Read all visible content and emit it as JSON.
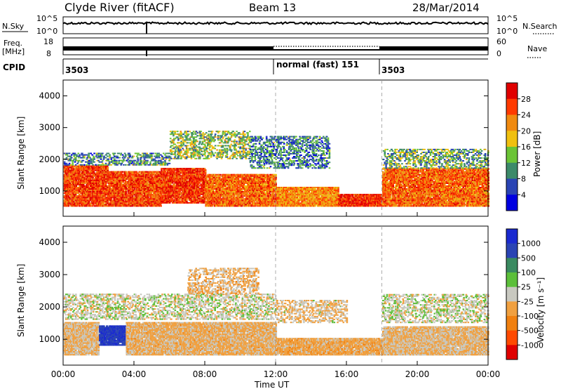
{
  "header": {
    "station": "Clyde River (fitACF)",
    "beam": "Beam 13",
    "date": "28/Mar/2014"
  },
  "noise_panel": {
    "left_label": "N.Sky",
    "right_label": "N.Search",
    "left_ticks": [
      "10^5",
      "10^0"
    ],
    "right_ticks": [
      "10^5",
      "10^0"
    ]
  },
  "freq_panel": {
    "left_label_line1": "Freq.",
    "left_label_line2": "[MHz]",
    "right_label": "Nave",
    "left_ticks": [
      "18",
      "8"
    ],
    "right_ticks": [
      "60",
      "0"
    ]
  },
  "cpid_panel": {
    "label": "CPID",
    "segments": [
      {
        "text": "3503",
        "start_hour": 0
      },
      {
        "text": "normal (fast)  151",
        "start_hour": 12
      },
      {
        "text": "3503",
        "start_hour": 18
      }
    ]
  },
  "colors": {
    "power_scale": [
      "#0000e0",
      "#2a44b4",
      "#3c8a6a",
      "#6bc436",
      "#f0c010",
      "#f08a10",
      "#ff3a00",
      "#e00000"
    ],
    "velocity_scale": [
      "#e00000",
      "#ff4a00",
      "#f08010",
      "#f0a040",
      "#c8c8c0",
      "#5cbf3a",
      "#3a8a60",
      "#2a44b4",
      "#1a2ad0"
    ]
  },
  "chart_data": [
    {
      "type": "heatmap",
      "title": "",
      "xlabel": "Time UT",
      "ylabel": "Slant Range [km]",
      "x_ticks": [
        "00:00",
        "04:00",
        "08:00",
        "12:00",
        "16:00",
        "20:00",
        "00:00"
      ],
      "xlim": [
        0,
        24
      ],
      "ylim": [
        200,
        4500
      ],
      "y_ticks": [
        "1000",
        "2000",
        "3000",
        "4000"
      ],
      "colorbar": {
        "label": "Power [dB]",
        "ticks": [
          "28",
          "24",
          "20",
          "16",
          "12",
          "8",
          "4"
        ],
        "range": [
          0,
          32
        ]
      },
      "echo_bands": [
        {
          "start_hour": 0.0,
          "end_hour": 2.5,
          "range_min": 500,
          "range_max": 1800,
          "mean_value": 26
        },
        {
          "start_hour": 2.5,
          "end_hour": 5.5,
          "range_min": 500,
          "range_max": 1600,
          "mean_value": 26
        },
        {
          "start_hour": 5.5,
          "end_hour": 8.0,
          "range_min": 600,
          "range_max": 1700,
          "mean_value": 27
        },
        {
          "start_hour": 8.0,
          "end_hour": 12.0,
          "range_min": 500,
          "range_max": 1500,
          "mean_value": 24
        },
        {
          "start_hour": 12.0,
          "end_hour": 15.5,
          "range_min": 500,
          "range_max": 1100,
          "mean_value": 22
        },
        {
          "start_hour": 15.5,
          "end_hour": 18.0,
          "range_min": 500,
          "range_max": 900,
          "mean_value": 28
        },
        {
          "start_hour": 18.0,
          "end_hour": 24.0,
          "range_min": 500,
          "range_max": 1700,
          "mean_value": 24
        }
      ],
      "upper_echoes": [
        {
          "start_hour": 0.0,
          "end_hour": 6.0,
          "range_min": 1800,
          "range_max": 2200,
          "mean_value": 10
        },
        {
          "start_hour": 6.0,
          "end_hour": 10.5,
          "range_min": 2000,
          "range_max": 2900,
          "mean_value": 14
        },
        {
          "start_hour": 10.5,
          "end_hour": 15.0,
          "range_min": 1700,
          "range_max": 2700,
          "mean_value": 9
        },
        {
          "start_hour": 18.0,
          "end_hour": 24.0,
          "range_min": 1700,
          "range_max": 2300,
          "mean_value": 12
        }
      ]
    },
    {
      "type": "heatmap",
      "title": "",
      "xlabel": "Time UT",
      "ylabel": "Slant Range [km]",
      "x_ticks": [
        "00:00",
        "04:00",
        "08:00",
        "12:00",
        "16:00",
        "20:00",
        "00:00"
      ],
      "xlim": [
        0,
        24
      ],
      "ylim": [
        200,
        4500
      ],
      "y_ticks": [
        "1000",
        "2000",
        "3000",
        "4000"
      ],
      "colorbar": {
        "label": "Velocity [m s⁻¹]",
        "ticks": [
          "1000",
          "500",
          "100",
          "25",
          "-25",
          "-100",
          "-500",
          "-1000"
        ],
        "range": [
          -1200,
          1200
        ]
      },
      "echo_bands": [
        {
          "start_hour": 0.0,
          "end_hour": 2.0,
          "range_min": 500,
          "range_max": 1500,
          "mean_value": -150
        },
        {
          "start_hour": 2.0,
          "end_hour": 3.5,
          "range_min": 800,
          "range_max": 1400,
          "mean_value": 900
        },
        {
          "start_hour": 3.5,
          "end_hour": 12.0,
          "range_min": 500,
          "range_max": 1500,
          "mean_value": -200
        },
        {
          "start_hour": 12.0,
          "end_hour": 18.0,
          "range_min": 500,
          "range_max": 1000,
          "mean_value": -250
        },
        {
          "start_hour": 18.0,
          "end_hour": 24.0,
          "range_min": 500,
          "range_max": 1400,
          "mean_value": -150
        }
      ],
      "upper_echoes": [
        {
          "start_hour": 0.0,
          "end_hour": 12.0,
          "range_min": 1600,
          "range_max": 2400,
          "mean_value": 0
        },
        {
          "start_hour": 7.0,
          "end_hour": 11.0,
          "range_min": 2400,
          "range_max": 3200,
          "mean_value": -200
        },
        {
          "start_hour": 12.0,
          "end_hour": 16.0,
          "range_min": 1500,
          "range_max": 2200,
          "mean_value": -120
        },
        {
          "start_hour": 18.0,
          "end_hour": 24.0,
          "range_min": 1500,
          "range_max": 2400,
          "mean_value": 10
        }
      ]
    }
  ]
}
